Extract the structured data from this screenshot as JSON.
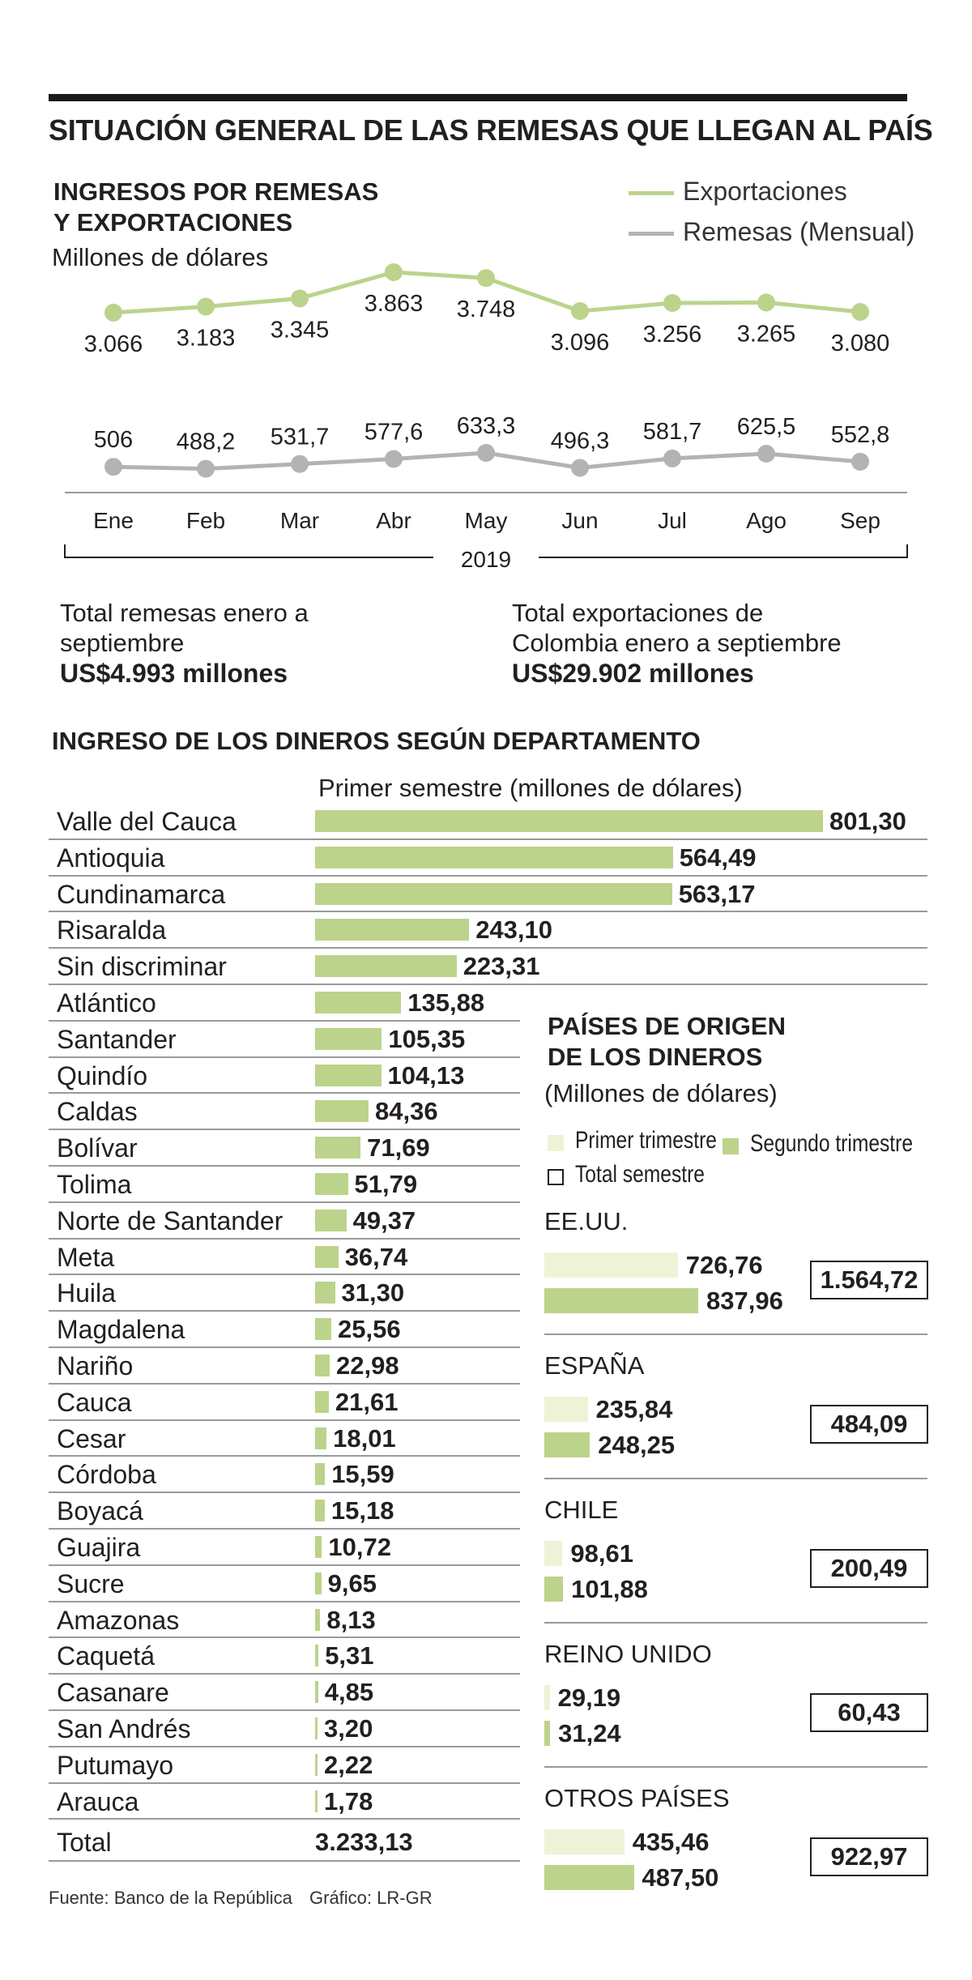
{
  "header": {
    "title": "SITUACIÓN GENERAL DE LAS REMESAS QUE LLEGAN AL PAÍS"
  },
  "colors": {
    "export_line": "#bcd38b",
    "remesas_line": "#b3b3b6",
    "bar_light": "#edf3d6",
    "bar_dark": "#bcd38b"
  },
  "line_chart": {
    "title_line1": "INGRESOS POR REMESAS",
    "title_line2": "Y EXPORTACIONES",
    "subtitle": "Millones de dólares",
    "legend_exports": "Exportaciones",
    "legend_remesas": "Remesas (Mensual)",
    "year_label": "2019"
  },
  "totals": {
    "remesas_text1": "Total remesas enero a",
    "remesas_text2": "septiembre",
    "remesas_value": "US$4.993 millones",
    "exports_text1": "Total exportaciones de",
    "exports_text2": "Colombia enero a septiembre",
    "exports_value": "US$29.902 millones"
  },
  "departments": {
    "title": "INGRESO DE LOS DINEROS SEGÚN DEPARTAMENTO",
    "subtitle": "Primer semestre (millones de dólares)",
    "total_label": "Total",
    "total_value": "3.233,13"
  },
  "countries": {
    "title_line1": "PAÍSES DE ORIGEN",
    "title_line2": "DE LOS DINEROS",
    "subtitle": "(Millones de dólares)",
    "legend_first": "Primer trimestre",
    "legend_second": "Segundo trimestre",
    "legend_total": "Total semestre"
  },
  "footer": {
    "source": "Fuente: Banco de la República",
    "credit": "Gráfico: LR-GR"
  },
  "chart_data": [
    {
      "type": "line",
      "title": "INGRESOS POR REMESAS Y EXPORTACIONES",
      "ylabel": "Millones de dólares",
      "categories": [
        "Ene",
        "Feb",
        "Mar",
        "Abr",
        "May",
        "Jun",
        "Jul",
        "Ago",
        "Sep"
      ],
      "series": [
        {
          "name": "Exportaciones",
          "values": [
            3066,
            3183,
            3345,
            3863,
            3748,
            3096,
            3256,
            3265,
            3080
          ],
          "labels": [
            "3.066",
            "3.183",
            "3.345",
            "3.863",
            "3.748",
            "3.096",
            "3.256",
            "3.265",
            "3.080"
          ]
        },
        {
          "name": "Remesas (Mensual)",
          "values": [
            506,
            488.2,
            531.7,
            577.6,
            633.3,
            496.3,
            581.7,
            625.5,
            552.8
          ],
          "labels": [
            "506",
            "488,2",
            "531,7",
            "577,6",
            "633,3",
            "496,3",
            "581,7",
            "625,5",
            "552,8"
          ]
        }
      ],
      "xlabel": "2019"
    },
    {
      "type": "bar",
      "title": "INGRESO DE LOS DINEROS SEGÚN DEPARTAMENTO",
      "subtitle": "Primer semestre (millones de dólares)",
      "categories": [
        "Valle del Cauca",
        "Antioquia",
        "Cundinamarca",
        "Risaralda",
        "Sin discriminar",
        "Atlántico",
        "Santander",
        "Quindío",
        "Caldas",
        "Bolívar",
        "Tolima",
        "Norte de Santander",
        "Meta",
        "Huila",
        "Magdalena",
        "Nariño",
        "Cauca",
        "Cesar",
        "Córdoba",
        "Boyacá",
        "Guajira",
        "Sucre",
        "Amazonas",
        "Caquetá",
        "Casanare",
        "San Andrés",
        "Putumayo",
        "Arauca"
      ],
      "values": [
        801.3,
        564.49,
        563.17,
        243.1,
        223.31,
        135.88,
        105.35,
        104.13,
        84.36,
        71.69,
        51.79,
        49.37,
        36.74,
        31.3,
        25.56,
        22.98,
        21.61,
        18.01,
        15.59,
        15.18,
        10.72,
        9.65,
        8.13,
        5.31,
        4.85,
        3.2,
        2.22,
        1.78
      ],
      "labels": [
        "801,30",
        "564,49",
        "563,17",
        "243,10",
        "223,31",
        "135,88",
        "105,35",
        "104,13",
        "84,36",
        "71,69",
        "51,79",
        "49,37",
        "36,74",
        "31,30",
        "25,56",
        "22,98",
        "21,61",
        "18,01",
        "15,59",
        "15,18",
        "10,72",
        "9,65",
        "8,13",
        "5,31",
        "4,85",
        "3,20",
        "2,22",
        "1,78"
      ]
    },
    {
      "type": "bar",
      "title": "PAÍSES DE ORIGEN DE LOS DINEROS",
      "subtitle": "(Millones de dólares)",
      "categories": [
        "EE.UU.",
        "ESPAÑA",
        "CHILE",
        "REINO UNIDO",
        "OTROS PAÍSES"
      ],
      "series": [
        {
          "name": "Primer trimestre",
          "values": [
            726.76,
            235.84,
            98.61,
            29.19,
            435.46
          ],
          "labels": [
            "726,76",
            "235,84",
            "98,61",
            "29,19",
            "435,46"
          ]
        },
        {
          "name": "Segundo trimestre",
          "values": [
            837.96,
            248.25,
            101.88,
            31.24,
            487.5
          ],
          "labels": [
            "837,96",
            "248,25",
            "101,88",
            "31,24",
            "487,50"
          ]
        },
        {
          "name": "Total semestre",
          "values": [
            1564.72,
            484.09,
            200.49,
            60.43,
            922.97
          ],
          "labels": [
            "1.564,72",
            "484,09",
            "200,49",
            "60,43",
            "922,97"
          ]
        }
      ]
    }
  ]
}
